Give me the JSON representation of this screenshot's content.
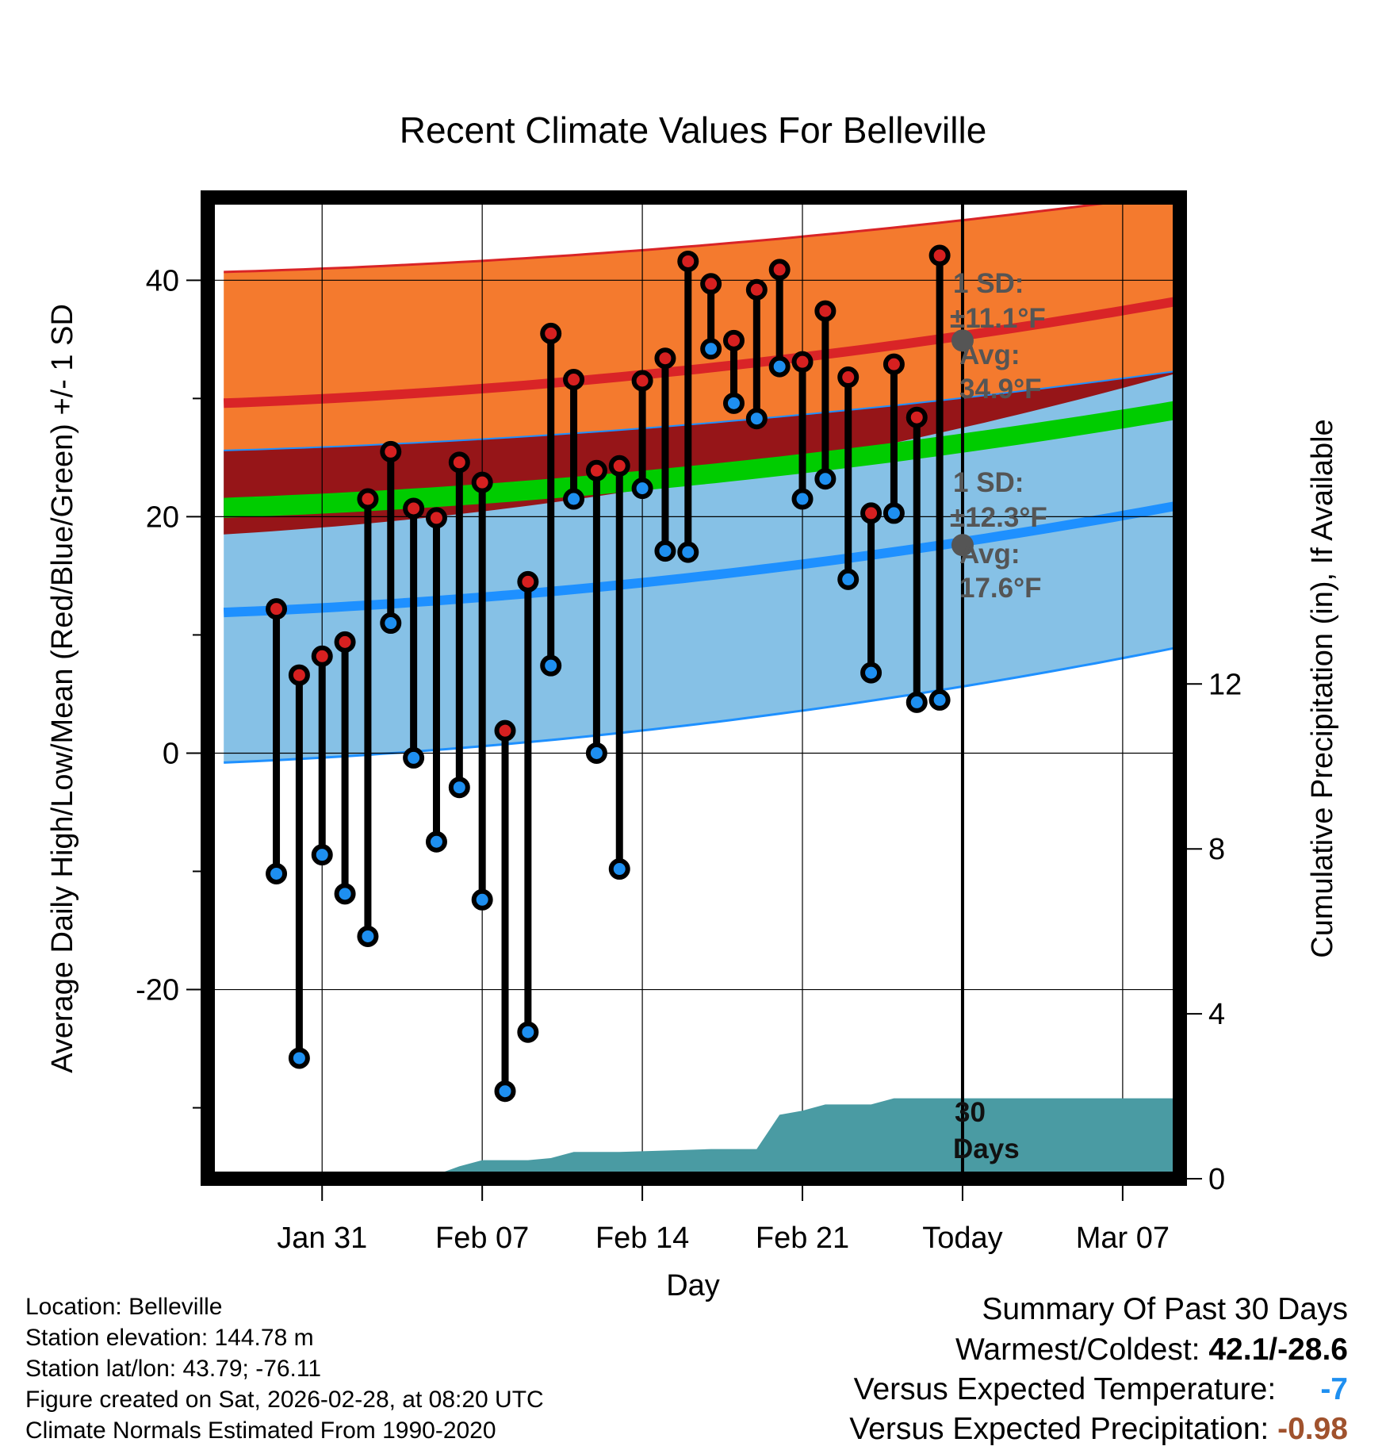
{
  "chart_data": {
    "type": "line",
    "title": "Recent Climate Values For Belleville",
    "xlabel": "Day",
    "ylabel": "Average Daily High/Low/Mean (Red/Blue/Green) +/- 1 SD",
    "y2label": "Cumulative Precipitation (in), If Available",
    "ylim": [
      -36,
      47
    ],
    "y2lim": [
      0,
      23.8
    ],
    "xlim_days": [
      -33,
      9.5
    ],
    "y_ticks": [
      "40",
      "20",
      "0",
      "-20"
    ],
    "y_tick_values": [
      40,
      20,
      0,
      -20
    ],
    "y2_ticks": [
      "12",
      "8",
      "4",
      "0"
    ],
    "y2_tick_values": [
      12,
      8,
      4,
      0
    ],
    "x_ticks": [
      "Jan 31",
      "Feb 07",
      "Feb 14",
      "Feb 21",
      "Today",
      "Mar 07"
    ],
    "x_tick_days": [
      -28,
      -21,
      -14,
      -7,
      0,
      7
    ],
    "normals": {
      "days": [
        -32.3,
        9.3
      ],
      "high_upper": [
        40.7,
        47.3
      ],
      "high_mean": [
        29.6,
        38.2
      ],
      "high_lower": [
        18.5,
        32.1
      ],
      "mean_upper": [
        21.6,
        29.8
      ],
      "mean_lower": [
        19.9,
        28.2
      ],
      "low_upper": [
        25.6,
        32.3
      ],
      "low_mean": [
        11.9,
        20.9
      ],
      "low_lower": [
        -0.8,
        8.9
      ]
    },
    "series": [
      {
        "name": "Daily High",
        "color": "#e02020",
        "days": [
          -30,
          -29,
          -28,
          -27,
          -26,
          -25,
          -24,
          -23,
          -22,
          -21,
          -20,
          -19,
          -18,
          -17,
          -16,
          -15,
          -14,
          -13,
          -12,
          -11,
          -10,
          -9,
          -8,
          -7,
          -6,
          -5,
          -4,
          -3,
          -2,
          -1
        ],
        "values": [
          12.2,
          6.6,
          8.2,
          9.4,
          21.5,
          25.5,
          20.7,
          19.9,
          24.6,
          22.9,
          1.9,
          14.5,
          35.5,
          31.6,
          23.9,
          24.3,
          31.5,
          33.4,
          41.6,
          39.7,
          34.9,
          39.2,
          40.9,
          33.1,
          37.4,
          31.8,
          20.3,
          32.9,
          28.4,
          42.1
        ]
      },
      {
        "name": "Daily Low",
        "color": "#1e8ff0",
        "days": [
          -30,
          -29,
          -28,
          -27,
          -26,
          -25,
          -24,
          -23,
          -22,
          -21,
          -20,
          -19,
          -18,
          -17,
          -16,
          -15,
          -14,
          -13,
          -12,
          -11,
          -10,
          -9,
          -8,
          -7,
          -6,
          -5,
          -4,
          -3,
          -2,
          -1
        ],
        "values": [
          -10.2,
          -25.8,
          -8.6,
          -11.9,
          -15.5,
          11.0,
          -0.4,
          -7.5,
          -2.9,
          -12.4,
          -28.6,
          -23.6,
          7.4,
          21.5,
          0.0,
          -9.8,
          22.4,
          17.1,
          17.0,
          34.2,
          29.6,
          28.3,
          32.7,
          21.5,
          23.2,
          14.7,
          6.8,
          20.3,
          4.3,
          4.5
        ]
      },
      {
        "name": "Cumulative Precipitation",
        "color": "#4a9ba3",
        "days": [
          -32.3,
          -23.5,
          -22,
          -21,
          -19,
          -18,
          -17,
          -15,
          -12,
          -11,
          -9,
          -8,
          -7,
          -6,
          -4,
          -3,
          -2,
          9.3
        ],
        "values": [
          0,
          0,
          0.3,
          0.45,
          0.45,
          0.5,
          0.65,
          0.65,
          0.7,
          0.72,
          0.72,
          1.55,
          1.65,
          1.8,
          1.8,
          1.95,
          1.95,
          1.95
        ]
      }
    ],
    "annotations": {
      "high_sd": "1 SD:",
      "high_sd_value": "±11.1°F",
      "high_avg_label": "Avg:",
      "high_avg_value": "34.9°F",
      "low_sd": "1 SD:",
      "low_sd_value": "±12.3°F",
      "low_avg_label": "Avg:",
      "low_avg_value": "17.6°F",
      "today_high_avg": 34.9,
      "today_low_avg": 17.6,
      "days_label_1": "30",
      "days_label_2": "Days"
    },
    "colors": {
      "high_band": "#f47a2e",
      "high_line": "#d92427",
      "low_band": "#86c1e6",
      "low_line": "#1e90ff",
      "overlap": "#961518",
      "mean_band": "#00cc00",
      "precip": "#4a9ba3",
      "high_marker": "#d62020",
      "low_marker": "#1e8ff0",
      "annotation": "#555555"
    }
  },
  "info": {
    "location": "Location: Belleville",
    "elevation": "Station elevation: 144.78 m",
    "latlon": "Station lat/lon: 43.79; -76.11",
    "created": "Figure created on Sat, 2026-02-28, at 08:20 UTC",
    "normals": "Climate Normals Estimated From 1990-2020"
  },
  "summary": {
    "title": "Summary Of Past 30 Days",
    "warmest_label": "Warmest/Coldest:",
    "warmest_value": "42.1/-28.6",
    "temp_label": "Versus Expected Temperature:",
    "temp_value": "-7",
    "temp_color": "#1e8ff0",
    "precip_label": "Versus Expected Precipitation:",
    "precip_value": "-0.98",
    "precip_color": "#a0522d"
  }
}
